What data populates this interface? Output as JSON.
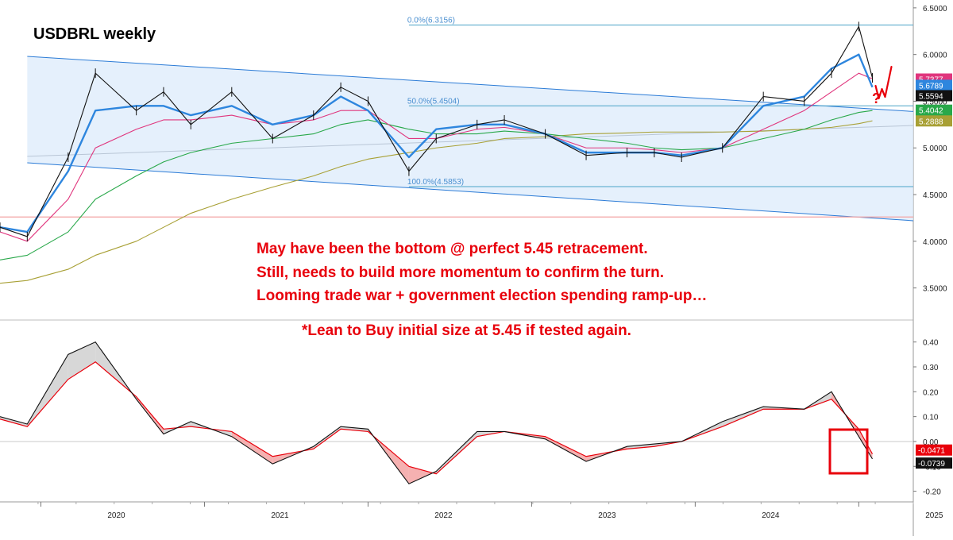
{
  "title": "USDBRL weekly",
  "annotations": {
    "line1": "May have been the bottom @ perfect 5.45 retracement.",
    "line2": "Still, needs to build more momentum to confirm the turn.",
    "line3": "Looming trade war + government election spending ramp-up…",
    "line4": "*Lean to Buy initial size at 5.45 if tested again.",
    "question": "?"
  },
  "colors": {
    "ma_fast": "#2e86de",
    "ma_mid": "#8fc3f0",
    "ma_pink": "#e0357d",
    "ma_green": "#29a84a",
    "ma_olive": "#a8a035",
    "channel_fill": "#dcebfb",
    "channel_line": "#2b7bd6",
    "fib_line": "#4aa3c7",
    "support_line": "#f3a3a3",
    "oscillator_red": "#e8000b",
    "highlight": "#e8000b"
  },
  "chart_data": [
    {
      "type": "line",
      "name": "price",
      "title": "USDBRL weekly",
      "x": [
        "2019-10",
        "2019-12",
        "2020-03",
        "2020-05",
        "2020-08",
        "2020-10",
        "2020-12",
        "2021-03",
        "2021-06",
        "2021-09",
        "2021-11",
        "2022-01",
        "2022-04",
        "2022-06",
        "2022-09",
        "2022-11",
        "2023-02",
        "2023-05",
        "2023-08",
        "2023-10",
        "2023-12",
        "2024-03",
        "2024-06",
        "2024-09",
        "2024-11",
        "2025-01",
        "2025-02"
      ],
      "x_ticks": [
        "2020",
        "2021",
        "2022",
        "2023",
        "2024",
        "2025"
      ],
      "series": [
        {
          "values": [
            4.15,
            4.05,
            4.9,
            5.8,
            5.4,
            5.6,
            5.25,
            5.6,
            5.1,
            5.35,
            5.65,
            5.5,
            4.75,
            5.1,
            5.25,
            5.3,
            5.15,
            4.92,
            4.95,
            4.95,
            4.9,
            5.0,
            5.55,
            5.5,
            5.8,
            6.3,
            5.75
          ]
        },
        {
          "values": [
            4.15,
            4.1,
            4.75,
            5.4,
            5.45,
            5.45,
            5.35,
            5.45,
            5.25,
            5.35,
            5.55,
            5.4,
            4.9,
            5.2,
            5.25,
            5.25,
            5.15,
            4.95,
            4.95,
            4.95,
            4.92,
            5.0,
            5.45,
            5.55,
            5.85,
            6.0,
            5.65
          ]
        },
        {
          "values": [
            4.1,
            4.0,
            4.45,
            5.0,
            5.2,
            5.3,
            5.3,
            5.35,
            5.25,
            5.3,
            5.4,
            5.4,
            5.1,
            5.1,
            5.2,
            5.22,
            5.15,
            5.0,
            5.0,
            4.98,
            4.95,
            5.0,
            5.2,
            5.4,
            5.6,
            5.8,
            5.74
          ]
        },
        {
          "values": [
            3.8,
            3.85,
            4.1,
            4.45,
            4.7,
            4.85,
            4.95,
            5.05,
            5.1,
            5.15,
            5.25,
            5.3,
            5.2,
            5.15,
            5.15,
            5.18,
            5.15,
            5.1,
            5.05,
            5.0,
            4.98,
            5.0,
            5.1,
            5.2,
            5.3,
            5.38,
            5.4
          ]
        },
        {
          "values": [
            3.55,
            3.58,
            3.7,
            3.85,
            4.0,
            4.15,
            4.3,
            4.45,
            4.58,
            4.7,
            4.8,
            4.88,
            4.95,
            5.0,
            5.05,
            5.1,
            5.12,
            5.15,
            5.16,
            5.17,
            5.17,
            5.17,
            5.18,
            5.2,
            5.22,
            5.26,
            5.29
          ]
        }
      ],
      "ylim": [
        3.25,
        6.55
      ],
      "y_ticks": [
        "3.5000",
        "4.0000",
        "4.5000",
        "5.0000",
        "5.5000",
        "6.0000",
        "6.5000"
      ],
      "fibonacci": [
        {
          "label": "0.0%(6.3156)",
          "value": 6.3156
        },
        {
          "label": "50.0%(5.4504)",
          "value": 5.4504
        },
        {
          "label": "100.0%(4.5853)",
          "value": 4.5853
        }
      ],
      "horizontal_lines": [
        4.26
      ],
      "channel": {
        "upper": [
          5.98,
          5.39
        ],
        "lower": [
          4.84,
          4.22
        ],
        "mid": [
          4.91,
          5.24
        ]
      },
      "price_tags": [
        {
          "label": "5.7377",
          "color": "#e0357d"
        },
        {
          "label": "5.6789",
          "color": "#2e86de"
        },
        {
          "label": "5.5594",
          "color": "#111111"
        },
        {
          "label": "5.4042",
          "color": "#29a84a"
        },
        {
          "label": "5.2888",
          "color": "#a8a035"
        }
      ]
    },
    {
      "type": "line",
      "name": "oscillator",
      "x": [
        "2019-10",
        "2019-12",
        "2020-03",
        "2020-05",
        "2020-08",
        "2020-10",
        "2020-12",
        "2021-03",
        "2021-06",
        "2021-09",
        "2021-11",
        "2022-01",
        "2022-04",
        "2022-06",
        "2022-09",
        "2022-11",
        "2023-02",
        "2023-05",
        "2023-08",
        "2023-10",
        "2023-12",
        "2024-03",
        "2024-06",
        "2024-09",
        "2024-11",
        "2025-01",
        "2025-02"
      ],
      "series": [
        {
          "values": [
            0.1,
            0.07,
            0.35,
            0.4,
            0.17,
            0.03,
            0.08,
            0.02,
            -0.09,
            -0.02,
            0.06,
            0.05,
            -0.17,
            -0.12,
            0.04,
            0.04,
            0.01,
            -0.08,
            -0.02,
            -0.01,
            0.0,
            0.08,
            0.14,
            0.13,
            0.2,
            0.02,
            -0.07
          ]
        },
        {
          "values": [
            0.09,
            0.06,
            0.25,
            0.32,
            0.18,
            0.05,
            0.06,
            0.04,
            -0.06,
            -0.03,
            0.05,
            0.04,
            -0.1,
            -0.13,
            0.02,
            0.04,
            0.02,
            -0.06,
            -0.03,
            -0.02,
            0.0,
            0.06,
            0.13,
            0.13,
            0.17,
            0.05,
            -0.05
          ]
        }
      ],
      "ylim": [
        -0.23,
        0.45
      ],
      "y_ticks": [
        "0.40",
        "0.30",
        "0.20",
        "0.10",
        "0.00",
        "-0.10",
        "-0.20"
      ],
      "price_tags": [
        {
          "label": "-0.0471",
          "color": "#e8000b"
        },
        {
          "label": "-0.0739",
          "color": "#111111"
        }
      ]
    }
  ]
}
